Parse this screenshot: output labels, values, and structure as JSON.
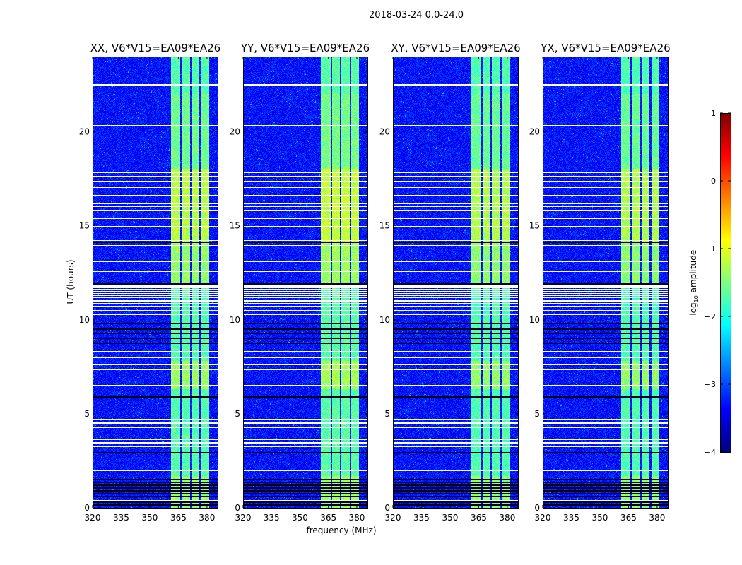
{
  "chart_data": {
    "type": "heatmap",
    "title": "2018-03-24 0.0-24.0",
    "xlabel": "frequency (MHz)",
    "ylabel": "UT (hours)",
    "xlim": [
      320,
      385.6
    ],
    "ylim": [
      0,
      24
    ],
    "xticks": [
      320,
      335,
      350,
      365,
      380
    ],
    "yticks": [
      0,
      5,
      10,
      15,
      20
    ],
    "panels": [
      {
        "title": "XX, V6*V15=EA09*EA26",
        "rfi_strength": 1.0
      },
      {
        "title": "YY, V6*V15=EA09*EA26",
        "rfi_strength": 1.05
      },
      {
        "title": "XY, V6*V15=EA09*EA26",
        "rfi_strength": 0.95
      },
      {
        "title": "YX, V6*V15=EA09*EA26",
        "rfi_strength": 0.95
      }
    ],
    "colorbar": {
      "label_prefix": "log",
      "label_sub": "10",
      "label_suffix": " amplitude",
      "range": [
        -4,
        1
      ],
      "ticks": [
        1,
        0,
        -1,
        -2,
        -3,
        -4
      ],
      "tick_labels": [
        "1",
        "0",
        "−1",
        "−2",
        "−3",
        "−4"
      ],
      "colormap": "jet"
    },
    "background_log_amplitude": -3.3,
    "rfi_band_mhz": [
      361,
      381
    ],
    "rfi_channel_gaps_mhz": [
      366.5,
      371.5,
      376.5
    ],
    "flagged_times_hours": [
      22.51,
      22.44,
      20.34,
      17.82,
      17.64,
      17.37,
      17.03,
      16.62,
      16.17,
      16.02,
      15.8,
      15.38,
      14.97,
      14.56,
      14.22,
      13.96,
      13.92,
      13.1,
      12.87,
      12.57,
      11.8,
      11.7,
      11.6,
      11.5,
      11.4,
      11.3,
      11.2,
      11.0,
      10.85,
      10.7,
      10.5,
      10.3,
      8.4,
      8.3,
      8.0,
      7.6,
      7.35,
      6.5,
      4.7,
      4.5,
      4.28,
      3.64,
      3.45,
      3.26,
      2.0,
      1.9,
      0.4
    ],
    "dark_times_hours": [
      10.05,
      9.8,
      9.5,
      9.25,
      9.0,
      8.75,
      5.9,
      2.96,
      1.5,
      1.35,
      1.2,
      1.05,
      0.9,
      0.75,
      0.6,
      0.3,
      0.15,
      14.1,
      12.75,
      11.9
    ]
  }
}
